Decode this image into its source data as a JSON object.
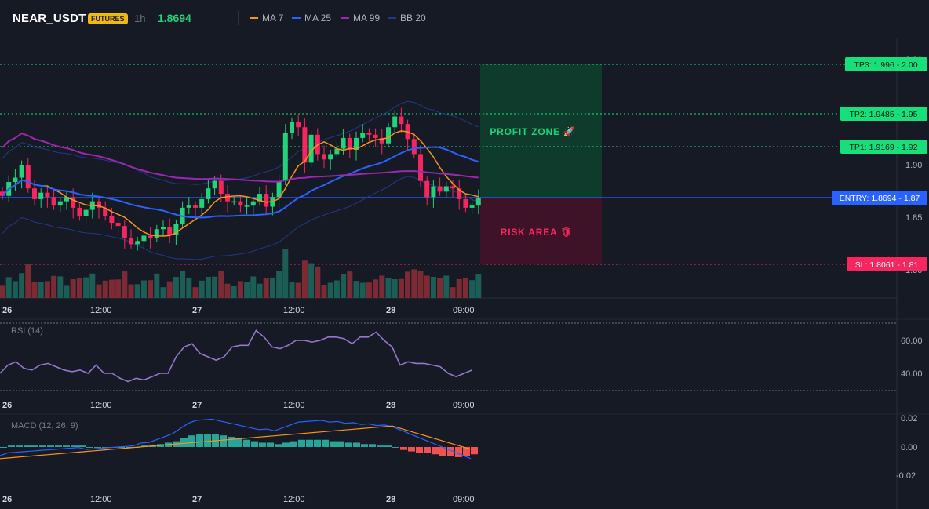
{
  "header": {
    "symbol": "NEAR_USDT",
    "badge": "FUTURES",
    "timeframe": "1h",
    "last_price": "1.8694",
    "legend": [
      {
        "label": "MA 7",
        "color": "#f7931a"
      },
      {
        "label": "MA 25",
        "color": "#2962ff"
      },
      {
        "label": "MA 99",
        "color": "#9c27b0"
      },
      {
        "label": "BB 20",
        "color": "#1f3a8a"
      }
    ]
  },
  "colors": {
    "up": "#26a69a",
    "down": "#ef5350",
    "candle_up": "#22d37a",
    "candle_down": "#f7265f",
    "profit": "#0f3b2c",
    "risk": "#3f1327",
    "entry": "#2962ff",
    "sl": "#f7265f",
    "tp": "#15e07a"
  },
  "price_axis": {
    "ticks": [
      "1.90",
      "1.85",
      "1.80",
      "2.00"
    ]
  },
  "levels": {
    "tp3": {
      "label": "TP3: 1.996 - 2.00",
      "value": 1.996
    },
    "tp2": {
      "label": "TP2: 1.9485 - 1.95",
      "value": 1.9485
    },
    "tp1": {
      "label": "TP1: 1.9169 - 1.92",
      "value": 1.9169
    },
    "entry": {
      "label": "ENTRY: 1.8694 - 1.87",
      "value": 1.8694
    },
    "sl": {
      "label": "SL: 1.8061 - 1.81",
      "value": 1.8061
    }
  },
  "zones": {
    "profit_label": "PROFIT ZONE 🚀",
    "risk_label": "RISK AREA 🛡"
  },
  "time_axis": [
    "26",
    "12:00",
    "27",
    "12:00",
    "28",
    "09:00"
  ],
  "rsi": {
    "title": "RSI (14)",
    "ticks": [
      "60.00",
      "40.00"
    ]
  },
  "macd": {
    "title": "MACD (12, 26, 9)",
    "ticks": [
      "0.02",
      "0.00",
      "-0.02"
    ]
  },
  "chart_data": {
    "type": "candlestick",
    "ohlc_close": [
      1.871,
      1.884,
      1.888,
      1.9,
      1.878,
      1.868,
      1.874,
      1.87,
      1.862,
      1.866,
      1.87,
      1.86,
      1.852,
      1.858,
      1.866,
      1.86,
      1.852,
      1.846,
      1.843,
      1.832,
      1.826,
      1.829,
      1.834,
      1.832,
      1.84,
      1.842,
      1.835,
      1.845,
      1.86,
      1.862,
      1.86,
      1.868,
      1.878,
      1.885,
      1.873,
      1.866,
      1.866,
      1.862,
      1.862,
      1.866,
      1.873,
      1.861,
      1.87,
      1.885,
      1.93,
      1.94,
      1.935,
      1.902,
      1.928,
      1.91,
      1.905,
      1.91,
      1.915,
      1.925,
      1.914,
      1.925,
      1.93,
      1.928,
      1.925,
      1.92,
      1.935,
      1.945,
      1.938,
      1.924,
      1.91,
      1.885,
      1.87,
      1.88,
      1.875,
      1.88,
      1.878,
      1.868,
      1.86,
      1.862,
      1.869
    ],
    "rsi_values": [
      40,
      45,
      47,
      43,
      42,
      45,
      46,
      44,
      42,
      41,
      42,
      40,
      45,
      40,
      40,
      37,
      35,
      37,
      36,
      38,
      40,
      40,
      50,
      56,
      58,
      52,
      50,
      48,
      50,
      56,
      57,
      57,
      66,
      62,
      56,
      55,
      57,
      60,
      60,
      59,
      60,
      62,
      62,
      61,
      58,
      62,
      62,
      65,
      60,
      56,
      45,
      47,
      46,
      46,
      45,
      44,
      40,
      38,
      40,
      42
    ],
    "macd_hist": [
      0.0,
      0.001,
      0.001,
      0.001,
      0.001,
      0.001,
      0.001,
      0.001,
      0.001,
      0.001,
      0.001,
      0.0,
      0.0,
      0.0,
      0.0,
      0.0,
      0.0,
      0.0,
      0.001,
      0.001,
      0.002,
      0.003,
      0.004,
      0.006,
      0.008,
      0.009,
      0.009,
      0.009,
      0.008,
      0.007,
      0.006,
      0.005,
      0.004,
      0.003,
      0.003,
      0.002,
      0.003,
      0.004,
      0.005,
      0.005,
      0.005,
      0.005,
      0.004,
      0.004,
      0.003,
      0.003,
      0.002,
      0.002,
      0.001,
      0.001,
      0.0,
      -0.002,
      -0.003,
      -0.004,
      -0.004,
      -0.005,
      -0.006,
      -0.006,
      -0.007,
      -0.006,
      -0.005
    ]
  }
}
